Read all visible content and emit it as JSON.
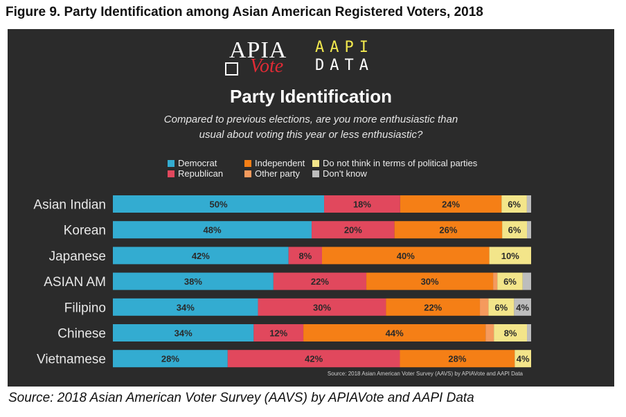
{
  "figure_title": "Figure 9.  Party Identification among Asian American Registered Voters, 2018",
  "logos": {
    "apia": "APIA",
    "vote": "Vote",
    "aapi_line1": "AAPI",
    "aapi_line2": "DATA"
  },
  "source_inner": "Source: 2018 Asian American Voter Survey (AAVS) by APIAVote and AAPI Data",
  "source": "Source: 2018 Asian American Voter Survey (AAVS) by APIAVote and AAPI Data",
  "chart_data": {
    "type": "bar",
    "orientation": "horizontal",
    "stacked": true,
    "title": "Party Identification",
    "subtitle_line1": "Compared to previous elections, are you more enthusiastic than",
    "subtitle_line2": "usual about voting this year or less enthusiastic?",
    "categories": [
      "Asian Indian",
      "Korean",
      "Japanese",
      "ASIAN AM",
      "Filipino",
      "Chinese",
      "Vietnamese"
    ],
    "series": [
      {
        "name": "Democrat",
        "color": "#33acd1",
        "values": [
          50,
          48,
          42,
          38,
          34,
          34,
          28
        ]
      },
      {
        "name": "Republican",
        "color": "#e1485d",
        "values": [
          18,
          20,
          8,
          22,
          30,
          12,
          42
        ]
      },
      {
        "name": "Independent",
        "color": "#f57f16",
        "values": [
          24,
          26,
          40,
          30,
          22,
          44,
          28
        ]
      },
      {
        "name": "Other party",
        "color": "#f59a5d",
        "values": [
          0,
          0,
          0,
          1,
          2,
          2,
          0
        ]
      },
      {
        "name": "Do not think in terms of political parties",
        "color": "#f3e58a",
        "values": [
          6,
          6,
          10,
          6,
          6,
          8,
          4
        ]
      },
      {
        "name": "Don't know",
        "color": "#bdbdbd",
        "values": [
          1,
          1,
          0,
          2,
          4,
          1,
          0
        ]
      }
    ],
    "labels": [
      [
        "50%",
        "18%",
        "24%",
        "",
        "6%",
        ""
      ],
      [
        "48%",
        "20%",
        "26%",
        "",
        "6%",
        ""
      ],
      [
        "42%",
        "8%",
        "40%",
        "",
        "10%",
        ""
      ],
      [
        "38%",
        "22%",
        "30%",
        "",
        "6%",
        ""
      ],
      [
        "34%",
        "30%",
        "22%",
        "",
        "6%",
        "4%"
      ],
      [
        "34%",
        "12%",
        "44%",
        "",
        "8%",
        ""
      ],
      [
        "28%",
        "42%",
        "28%",
        "",
        "4%",
        ""
      ]
    ],
    "legend_order": [
      "Democrat",
      "Independent",
      "Do not think in terms of political parties",
      "Republican",
      "Other party",
      "Don't know"
    ],
    "xlim": [
      0,
      100
    ]
  }
}
